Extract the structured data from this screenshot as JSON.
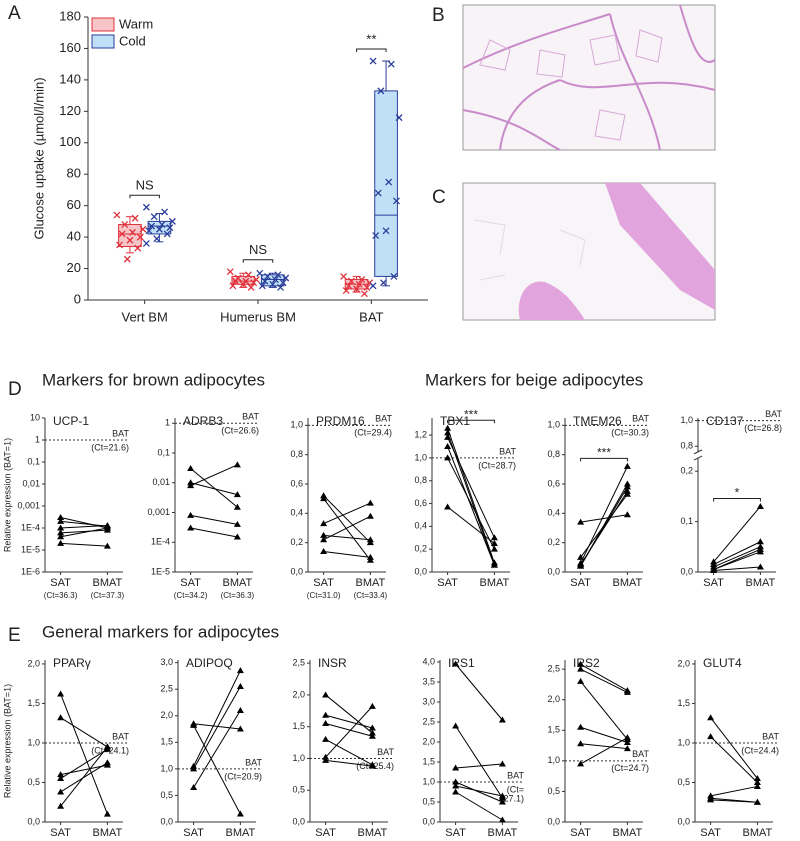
{
  "figure": {
    "panel_labels": [
      "A",
      "B",
      "C",
      "D",
      "E"
    ],
    "section_titles": [
      "Markers for brown adipocytes",
      "Markers for beige adipocytes",
      "General markers for adipocytes"
    ]
  },
  "chart_data": [
    {
      "type": "box",
      "ylabel": "Glucose uptake (µmol/l/min)",
      "categories": [
        "Vert BM",
        "Humerus BM",
        "BAT"
      ],
      "ylim": [
        0,
        180
      ],
      "yticks": [
        0,
        20,
        40,
        60,
        80,
        100,
        120,
        140,
        160,
        180
      ],
      "legend": "upper left",
      "annotations": [
        "NS",
        "NS",
        "**"
      ],
      "series": [
        {
          "name": "Warm",
          "color": "#e0303a",
          "fill": "#f7c5c8",
          "boxes": [
            {
              "min": 30,
              "q1": 34,
              "median": 42,
              "q3": 48,
              "max": 53
            },
            {
              "min": 8,
              "q1": 10,
              "median": 12,
              "q3": 15,
              "max": 17
            },
            {
              "min": 5,
              "q1": 7,
              "median": 10,
              "q3": 13,
              "max": 15
            }
          ],
          "points": [
            [
              54,
              52,
              48,
              45,
              43,
              42,
              40,
              38,
              35,
              33,
              26
            ],
            [
              18,
              16,
              14,
              13,
              12,
              12,
              11,
              10,
              9,
              8
            ],
            [
              15,
              13,
              12,
              11,
              10,
              9,
              8,
              7,
              6,
              4
            ]
          ]
        },
        {
          "name": "Cold",
          "color": "#2a3d9a",
          "fill": "#bfe0f7",
          "boxes": [
            {
              "min": 37,
              "q1": 42,
              "median": 47,
              "q3": 50,
              "max": 55
            },
            {
              "min": 8,
              "q1": 9,
              "median": 13,
              "q3": 16,
              "max": 17
            },
            {
              "min": 9,
              "q1": 15,
              "median": 54,
              "q3": 133,
              "max": 152
            }
          ],
          "points": [
            [
              59,
              56,
              53,
              50,
              48,
              47,
              46,
              45,
              44,
              42,
              39,
              36
            ],
            [
              17,
              16,
              15,
              14,
              13,
              12,
              11,
              10,
              9,
              8
            ],
            [
              152,
              150,
              133,
              116,
              75,
              68,
              63,
              44,
              41,
              15,
              11,
              9
            ]
          ]
        }
      ]
    },
    {
      "type": "line",
      "title": "UCP-1",
      "ylabel": "Relative expression (BAT=1)",
      "scale": "log",
      "color": "#000000",
      "categories": [
        "SAT",
        "BMAT"
      ],
      "category_notes": [
        "(Ct=36.3)",
        "(Ct=37.3)"
      ],
      "ylim": [
        1e-06,
        10
      ],
      "yticks": [
        {
          "value": 1e-06,
          "label": "1E-6"
        },
        {
          "value": 1e-05,
          "label": "1E-5"
        },
        {
          "value": 0.0001,
          "label": "1E-4"
        },
        {
          "value": 0.001,
          "label": "0,001"
        },
        {
          "value": 0.01,
          "label": "0,01"
        },
        {
          "value": 0.1,
          "label": "0,1"
        },
        1,
        10
      ],
      "ref_line": 1,
      "ref_label": [
        "BAT",
        "(Ct=21.6)"
      ],
      "series": [
        {
          "values": [
            0.0003,
            0.0001
          ]
        },
        {
          "values": [
            0.0002,
            0.00012
          ]
        },
        {
          "values": [
            0.0001,
            0.00013
          ]
        },
        {
          "values": [
            6e-05,
            8e-05
          ]
        },
        {
          "values": [
            4e-05,
            0.0001
          ]
        },
        {
          "values": [
            2e-05,
            1.5e-05
          ]
        }
      ]
    },
    {
      "type": "line",
      "title": "ADRB3",
      "scale": "log",
      "color": "#000000",
      "categories": [
        "SAT",
        "BMAT"
      ],
      "category_notes": [
        "(Ct=34.2)",
        "(Ct=36.3)"
      ],
      "ylim": [
        1e-05,
        1.5
      ],
      "yticks": [
        {
          "value": 1e-05,
          "label": "1E-5"
        },
        {
          "value": 0.0001,
          "label": "1E-4"
        },
        {
          "value": 0.001,
          "label": "0,001"
        },
        {
          "value": 0.01,
          "label": "0,01"
        },
        {
          "value": 0.1,
          "label": "0,1"
        },
        1
      ],
      "ref_line": 1,
      "ref_label": [
        "BAT",
        "(Ct=26.6)"
      ],
      "series": [
        {
          "values": [
            0.03,
            0.0015
          ]
        },
        {
          "values": [
            0.01,
            0.004
          ]
        },
        {
          "values": [
            0.008,
            0.04
          ]
        },
        {
          "values": [
            0.0008,
            0.0004
          ]
        },
        {
          "values": [
            0.0003,
            0.00015
          ]
        }
      ]
    },
    {
      "type": "line",
      "title": "PRDM16",
      "color": "#000000",
      "categories": [
        "SAT",
        "BMAT"
      ],
      "category_notes": [
        "(Ct=31.0)",
        "(Ct=33.4)"
      ],
      "ylim": [
        0,
        1.05
      ],
      "yticks": [
        {
          "value": 0,
          "label": "0,0"
        },
        {
          "value": 0.2,
          "label": "0,2"
        },
        {
          "value": 0.4,
          "label": "0,4"
        },
        {
          "value": 0.6,
          "label": "0,6"
        },
        {
          "value": 0.8,
          "label": "0,8"
        },
        {
          "value": 1,
          "label": "1,0"
        }
      ],
      "ref_line": 1,
      "ref_label": [
        "BAT",
        "(Ct=29.4)"
      ],
      "series": [
        {
          "values": [
            0.52,
            0.2
          ]
        },
        {
          "values": [
            0.5,
            0.08
          ]
        },
        {
          "values": [
            0.33,
            0.47
          ]
        },
        {
          "values": [
            0.25,
            0.22
          ]
        },
        {
          "values": [
            0.22,
            0.38
          ]
        },
        {
          "values": [
            0.14,
            0.1
          ]
        }
      ]
    },
    {
      "type": "line",
      "title": "TBX1",
      "color": "#000000",
      "categories": [
        "SAT",
        "BMAT"
      ],
      "ylim": [
        0,
        1.35
      ],
      "yticks": [
        {
          "value": 0,
          "label": "0,0"
        },
        {
          "value": 0.2,
          "label": "0,2"
        },
        {
          "value": 0.4,
          "label": "0,4"
        },
        {
          "value": 0.6,
          "label": "0,6"
        },
        {
          "value": 0.8,
          "label": "0,8"
        },
        {
          "value": 1,
          "label": "1,0"
        },
        {
          "value": 1.2,
          "label": "1,2"
        }
      ],
      "ref_line": 1,
      "ref_label": [
        "BAT",
        "(Ct=28.7)"
      ],
      "annotation": "***",
      "series": [
        {
          "values": [
            1.26,
            0.08
          ]
        },
        {
          "values": [
            1.22,
            0.06
          ]
        },
        {
          "values": [
            1.18,
            0.3
          ]
        },
        {
          "values": [
            1.1,
            0.06
          ]
        },
        {
          "values": [
            1.0,
            0.2
          ]
        },
        {
          "values": [
            0.57,
            0.25
          ]
        }
      ]
    },
    {
      "type": "line",
      "title": "TMEM26",
      "color": "#000000",
      "categories": [
        "SAT",
        "BMAT"
      ],
      "ylim": [
        0,
        1.05
      ],
      "yticks": [
        {
          "value": 0,
          "label": "0,0"
        },
        {
          "value": 0.2,
          "label": "0,2"
        },
        {
          "value": 0.4,
          "label": "0,4"
        },
        {
          "value": 0.6,
          "label": "0,6"
        },
        {
          "value": 0.8,
          "label": "0,8"
        },
        {
          "value": 1,
          "label": "1,0"
        }
      ],
      "ref_line": 1,
      "ref_label": [
        "BAT",
        "(Ct=30.3)"
      ],
      "annotation": "***",
      "series": [
        {
          "values": [
            0.34,
            0.39
          ]
        },
        {
          "values": [
            0.1,
            0.53
          ]
        },
        {
          "values": [
            0.06,
            0.72
          ]
        },
        {
          "values": [
            0.05,
            0.55
          ]
        },
        {
          "values": [
            0.04,
            0.58
          ]
        },
        {
          "values": [
            0.04,
            0.6
          ]
        }
      ]
    },
    {
      "type": "line",
      "title": "CD137",
      "color": "#000000",
      "categories": [
        "SAT",
        "BMAT"
      ],
      "ylim": [
        0,
        1.02
      ],
      "ybreak": [
        0.22,
        0.78
      ],
      "yticks": [
        {
          "value": 0,
          "label": "0,0"
        },
        {
          "value": 0.1,
          "label": "0,1"
        },
        {
          "value": 0.2,
          "label": "0,2"
        },
        {
          "value": 0.8,
          "label": "0,8"
        },
        {
          "value": 1,
          "label": "1,0"
        }
      ],
      "ref_line": 1,
      "ref_label": [
        "BAT",
        "(Ct=26.8)"
      ],
      "annotation": "*",
      "series": [
        {
          "values": [
            0.02,
            0.13
          ]
        },
        {
          "values": [
            0.015,
            0.06
          ]
        },
        {
          "values": [
            0.01,
            0.05
          ]
        },
        {
          "values": [
            0.005,
            0.045
          ]
        },
        {
          "values": [
            0.005,
            0.04
          ]
        },
        {
          "values": [
            0.003,
            0.01
          ]
        }
      ]
    },
    {
      "type": "line",
      "title": "PPARγ",
      "ylabel": "Relative expression (BAT=1)",
      "color": "#000000",
      "categories": [
        "SAT",
        "BMAT"
      ],
      "ylim": [
        0,
        2.05
      ],
      "yticks": [
        {
          "value": 0,
          "label": "0,0"
        },
        {
          "value": 0.5,
          "label": "0,5"
        },
        {
          "value": 1,
          "label": "1,0"
        },
        {
          "value": 1.5,
          "label": "1,5"
        },
        {
          "value": 2,
          "label": "2,0"
        }
      ],
      "ref_line": 1,
      "ref_label": [
        "BAT",
        "(Ct=24.1)"
      ],
      "series": [
        {
          "values": [
            1.62,
            0.1
          ]
        },
        {
          "values": [
            1.32,
            0.95
          ]
        },
        {
          "values": [
            0.6,
            0.72
          ]
        },
        {
          "values": [
            0.55,
            0.92
          ]
        },
        {
          "values": [
            0.38,
            0.75
          ]
        },
        {
          "values": [
            0.2,
            0.95
          ]
        }
      ]
    },
    {
      "type": "line",
      "title": "ADIPOQ",
      "color": "#000000",
      "categories": [
        "SAT",
        "BMAT"
      ],
      "ylim": [
        0,
        3.05
      ],
      "yticks": [
        {
          "value": 0,
          "label": "0,0"
        },
        {
          "value": 0.5,
          "label": "0,5"
        },
        {
          "value": 1,
          "label": "1,0"
        },
        {
          "value": 1.5,
          "label": "1,5"
        },
        {
          "value": 2,
          "label": "2,0"
        },
        {
          "value": 2.5,
          "label": "2,5"
        },
        {
          "value": 3,
          "label": "3,0"
        }
      ],
      "ref_line": 1,
      "ref_label": [
        "BAT",
        "(Ct=20.9)"
      ],
      "series": [
        {
          "values": [
            1.85,
            1.75
          ]
        },
        {
          "values": [
            1.82,
            0.15
          ]
        },
        {
          "values": [
            1.05,
            2.85
          ]
        },
        {
          "values": [
            1.0,
            2.55
          ]
        },
        {
          "values": [
            0.65,
            2.1
          ]
        }
      ]
    },
    {
      "type": "line",
      "title": "INSR",
      "color": "#000000",
      "categories": [
        "SAT",
        "BMAT"
      ],
      "ylim": [
        0,
        2.55
      ],
      "yticks": [
        {
          "value": 0,
          "label": "0,0"
        },
        {
          "value": 0.5,
          "label": "0,5"
        },
        {
          "value": 1,
          "label": "1,0"
        },
        {
          "value": 1.5,
          "label": "1,5"
        },
        {
          "value": 2,
          "label": "2,0"
        },
        {
          "value": 2.5,
          "label": "2,5"
        }
      ],
      "ref_line": 1,
      "ref_label": [
        "BAT",
        "(Ct=25.4)"
      ],
      "series": [
        {
          "values": [
            2.0,
            1.4
          ]
        },
        {
          "values": [
            1.68,
            1.48
          ]
        },
        {
          "values": [
            1.55,
            1.35
          ]
        },
        {
          "values": [
            1.3,
            0.9
          ]
        },
        {
          "values": [
            1.02,
            1.82
          ]
        },
        {
          "values": [
            0.97,
            0.88
          ]
        }
      ]
    },
    {
      "type": "line",
      "title": "IRS1",
      "color": "#000000",
      "categories": [
        "SAT",
        "BMAT"
      ],
      "ylim": [
        0,
        4.05
      ],
      "yticks": [
        {
          "value": 0,
          "label": "0,0"
        },
        {
          "value": 0.5,
          "label": "0,5"
        },
        {
          "value": 1,
          "label": "1,0"
        },
        {
          "value": 1.5,
          "label": "1,5"
        },
        {
          "value": 2,
          "label": "2,0"
        },
        {
          "value": 2.5,
          "label": "2,5"
        },
        {
          "value": 3,
          "label": "3,0"
        },
        {
          "value": 3.5,
          "label": "3,5"
        },
        {
          "value": 4,
          "label": "4,0"
        }
      ],
      "ref_line": 1,
      "ref_label": [
        "BAT",
        "(Ct=",
        "27.1)"
      ],
      "series": [
        {
          "values": [
            3.95,
            2.55
          ]
        },
        {
          "values": [
            2.4,
            0.6
          ]
        },
        {
          "values": [
            1.35,
            1.45
          ]
        },
        {
          "values": [
            1.0,
            0.5
          ]
        },
        {
          "values": [
            0.9,
            0.65
          ]
        },
        {
          "values": [
            0.75,
            0.05
          ]
        }
      ]
    },
    {
      "type": "line",
      "title": "IRS2",
      "color": "#000000",
      "categories": [
        "SAT",
        "BMAT"
      ],
      "ylim": [
        0,
        2.65
      ],
      "yticks": [
        {
          "value": 0,
          "label": "0,0"
        },
        {
          "value": 0.5,
          "label": "0,5"
        },
        {
          "value": 1,
          "label": "1,0"
        },
        {
          "value": 1.5,
          "label": "1,5"
        },
        {
          "value": 2,
          "label": "2,0"
        },
        {
          "value": 2.5,
          "label": "2,5"
        }
      ],
      "ref_line": 1,
      "ref_label": [
        "BAT",
        "(Ct=24.7)"
      ],
      "series": [
        {
          "values": [
            2.58,
            2.15
          ]
        },
        {
          "values": [
            2.5,
            2.12
          ]
        },
        {
          "values": [
            2.3,
            1.35
          ]
        },
        {
          "values": [
            1.55,
            1.3
          ]
        },
        {
          "values": [
            1.28,
            1.2
          ]
        },
        {
          "values": [
            0.95,
            1.38
          ]
        }
      ]
    },
    {
      "type": "line",
      "title": "GLUT4",
      "color": "#000000",
      "categories": [
        "SAT",
        "BMAT"
      ],
      "ylim": [
        0,
        2.05
      ],
      "yticks": [
        {
          "value": 0,
          "label": "0,0"
        },
        {
          "value": 0.5,
          "label": "0,5"
        },
        {
          "value": 1,
          "label": "1,0"
        },
        {
          "value": 1.5,
          "label": "1,5"
        },
        {
          "value": 2,
          "label": "2,0"
        }
      ],
      "ref_line": 1,
      "ref_label": [
        "BAT",
        "(Ct=24.4)"
      ],
      "series": [
        {
          "values": [
            1.32,
            0.55
          ]
        },
        {
          "values": [
            1.08,
            0.5
          ]
        },
        {
          "values": [
            0.33,
            0.45
          ]
        },
        {
          "values": [
            0.3,
            0.25
          ]
        },
        {
          "values": [
            0.28,
            0.25
          ]
        }
      ]
    }
  ]
}
